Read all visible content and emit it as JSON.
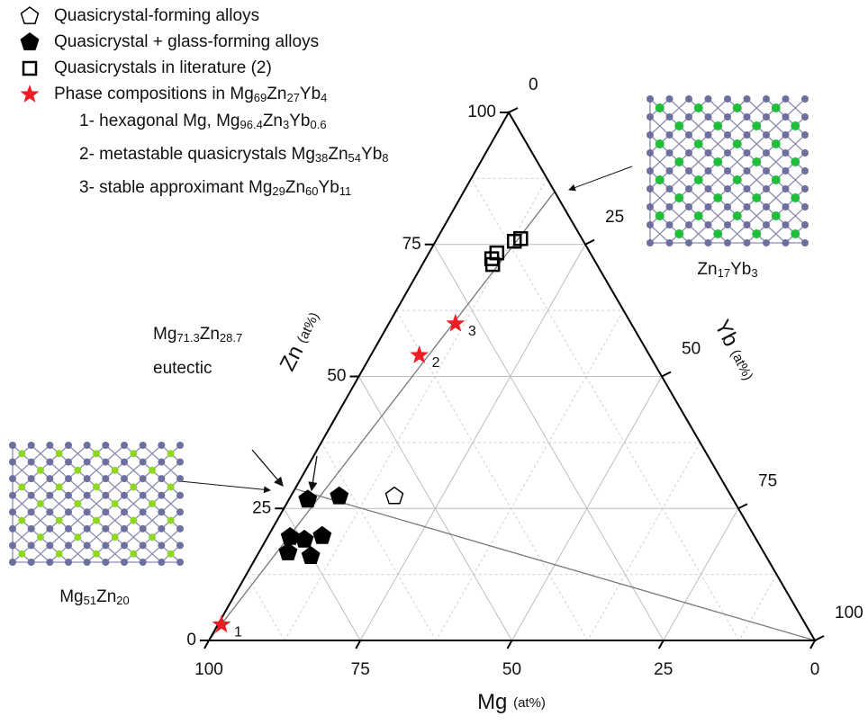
{
  "chart_data": {
    "type": "ternary",
    "axes": {
      "bottom": {
        "title": "Mg (at%)",
        "lim": [
          0,
          100
        ],
        "ticks": [
          0,
          25,
          50,
          75,
          100
        ]
      },
      "left": {
        "title": "Zn (at%)",
        "lim": [
          0,
          100
        ],
        "ticks": [
          0,
          25,
          50,
          75,
          100
        ]
      },
      "right": {
        "title": "Yb (at%)",
        "lim": [
          0,
          100
        ],
        "ticks": [
          0,
          25,
          50,
          75,
          100
        ]
      }
    },
    "grid": true,
    "series": [
      {
        "name": "Quasicrystal-forming alloys",
        "marker": "pentagon-open",
        "color": "#000000",
        "mg": [
          55.6
        ],
        "zn": [
          27.3
        ],
        "yb": [
          17.1
        ]
      },
      {
        "name": "Quasicrystal + glass-forming alloys",
        "marker": "pentagon",
        "color": "#000000",
        "mg": [
          70.2,
          64.7,
          76.7,
          74.6,
          71.3,
          78.5,
          75.1
        ],
        "zn": [
          26.7,
          27.3,
          19.6,
          19.1,
          19.8,
          16.7,
          16.0
        ],
        "yb": [
          3.1,
          8.0,
          3.7,
          6.3,
          8.9,
          4.8,
          8.9
        ]
      },
      {
        "name": "Quasicrystals in literature (2)",
        "marker": "square-open",
        "color": "#000000",
        "mg": [
          17.2,
          16.8,
          15.4,
          11.4,
          10.1
        ],
        "zn": [
          71.2,
          72.3,
          73.4,
          75.6,
          76.1
        ],
        "yb": [
          11.6,
          10.9,
          11.2,
          13.0,
          13.8
        ]
      },
      {
        "name": "Phase compositions in Mg69Zn27Yb4",
        "marker": "star",
        "color": "#ee1c25",
        "mg": [
          96.4,
          38,
          29
        ],
        "zn": [
          3,
          54,
          60
        ],
        "yb": [
          0.6,
          8,
          11
        ],
        "point_labels": [
          "1",
          "2",
          "3"
        ]
      }
    ],
    "phase_descriptions": [
      "1- hexagonal Mg, Mg96.4Zn3Yb0.6",
      "2- metastable quasicrystals Mg38Zn54Yb8",
      "3- stable approximant Mg29Zn60Yb11"
    ],
    "tie_lines": [
      {
        "from": {
          "mg": 100,
          "zn": 0,
          "yb": 0
        },
        "to": {
          "mg": 0,
          "zn": 85,
          "yb": 15
        }
      },
      {
        "from": {
          "mg": 71.3,
          "zn": 28.7,
          "yb": 0
        },
        "to": {
          "mg": 0,
          "zn": 0,
          "yb": 100
        }
      }
    ],
    "annotations": {
      "eutectic_composition": "Mg71.3Zn28.7",
      "eutectic": "eutectic",
      "right_structure": "Zn17Yb3",
      "left_structure": "Mg51Zn20"
    }
  }
}
